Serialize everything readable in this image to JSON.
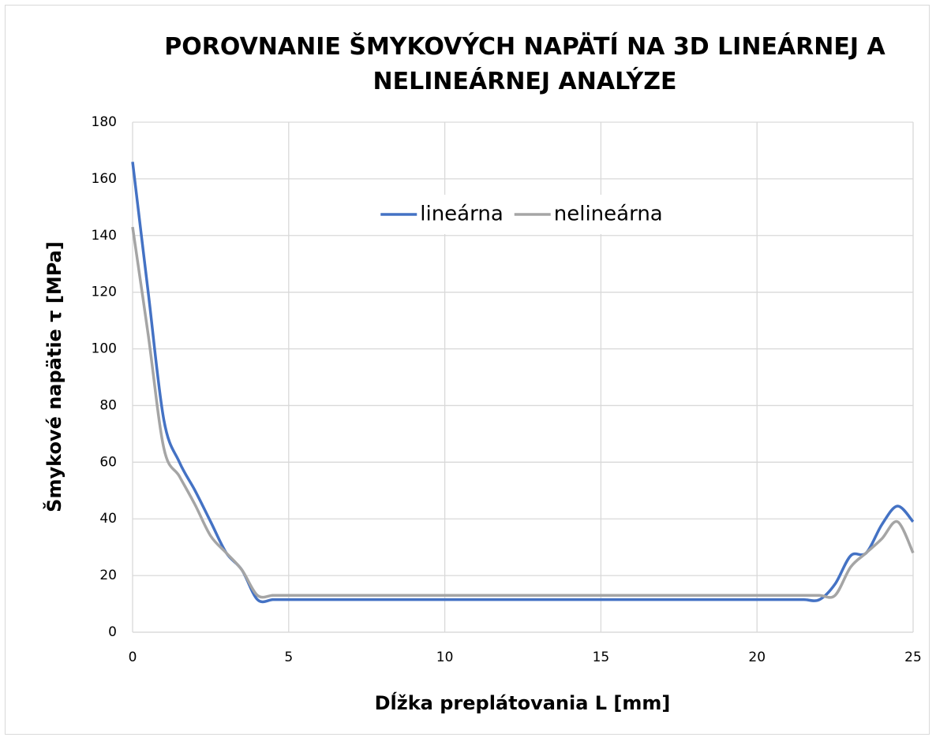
{
  "chart_data": {
    "type": "line",
    "title": "POROVNANIE ŠMYKOVÝCH NAPÄTÍ NA 3D LINEÁRNEJ A NELINEÁRNEJ ANALÝZE",
    "x_label": "Dĺžka preplátovania L [mm]",
    "y_label": "Šmykové napätie τ [MPa]",
    "x": [
      0,
      0.5,
      1,
      1.5,
      2,
      2.5,
      3,
      3.5,
      4,
      4.5,
      5,
      10,
      15,
      20,
      21,
      21.5,
      22,
      22.5,
      23,
      23.5,
      24,
      24.5,
      25
    ],
    "series": [
      {
        "name": "lineárna",
        "color": "#4472c4",
        "values": [
          166,
          120,
          75,
          60,
          50,
          39,
          28,
          22,
          11.5,
          11.5,
          11.5,
          11.5,
          11.5,
          11.5,
          11.5,
          11.5,
          11.5,
          17,
          27,
          28,
          38,
          44.5,
          39
        ]
      },
      {
        "name": "nelineárna",
        "color": "#a5a5a5",
        "values": [
          143,
          105,
          65,
          55,
          45,
          34,
          28,
          22,
          13,
          13,
          13,
          13,
          13,
          13,
          13,
          13,
          13,
          13,
          23,
          28,
          33,
          39,
          28
        ]
      }
    ],
    "xlim": [
      0,
      25
    ],
    "xticks": [
      0,
      5,
      10,
      15,
      20,
      25
    ],
    "ylim": [
      0,
      180
    ],
    "yticks": [
      0,
      20,
      40,
      60,
      80,
      100,
      120,
      140,
      160,
      180
    ],
    "grid": true,
    "legend": "top"
  }
}
